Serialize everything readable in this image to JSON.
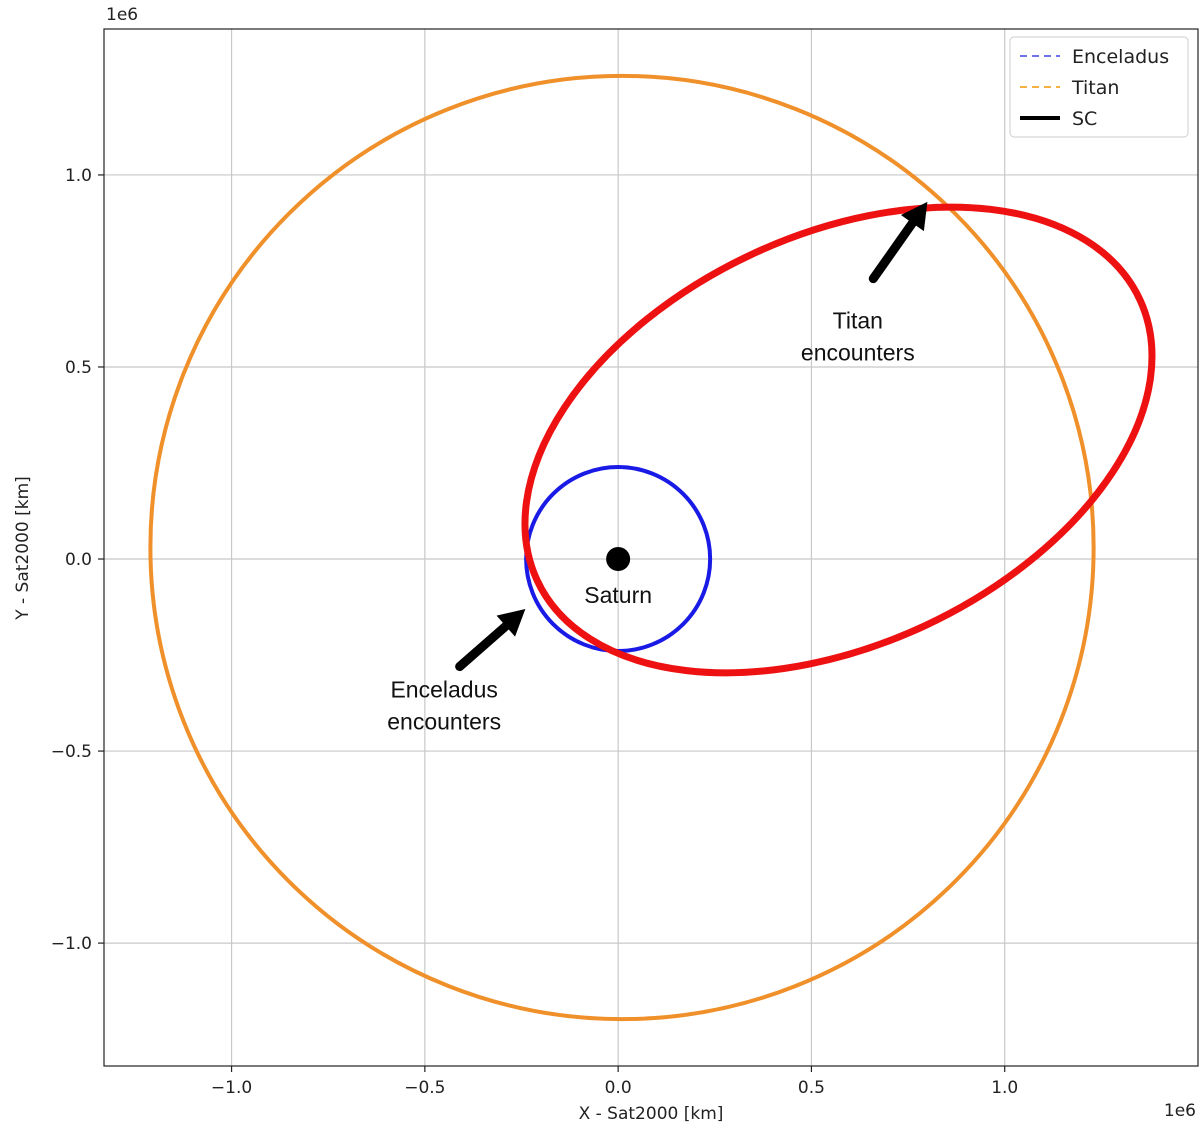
{
  "chart_data": {
    "type": "line",
    "xlabel": "X - Sat2000 [km]",
    "ylabel": "Y - Sat2000 [km]",
    "x_offset_label": "1e6",
    "y_offset_label": "1e6",
    "xlim": [
      -1.33,
      1.5
    ],
    "ylim": [
      -1.32,
      1.38
    ],
    "xticks": [
      {
        "value": -1.0,
        "label": "−1.0"
      },
      {
        "value": -0.5,
        "label": "−0.5"
      },
      {
        "value": 0.0,
        "label": "0.0"
      },
      {
        "value": 0.5,
        "label": "0.5"
      },
      {
        "value": 1.0,
        "label": "1.0"
      }
    ],
    "yticks": [
      {
        "value": 1.0,
        "label": "1.0"
      },
      {
        "value": 0.5,
        "label": "0.5"
      },
      {
        "value": 0.0,
        "label": "0.0"
      },
      {
        "value": -0.5,
        "label": "−0.5"
      },
      {
        "value": -1.0,
        "label": "−1.0"
      }
    ],
    "grid": true,
    "legend_position": "top-right",
    "legend": [
      {
        "label": "Enceladus",
        "color": "#7070e8",
        "style": "dashed"
      },
      {
        "label": "Titan",
        "color": "#f5b040",
        "style": "dashed"
      },
      {
        "label": "SC",
        "color": "#000000",
        "style": "solid"
      }
    ],
    "orbits": [
      {
        "name": "titan-orbit",
        "color": "#f0902a",
        "cx": 0.01,
        "cy": 0.03,
        "rx": 1.22,
        "ry": 1.22,
        "rotation_deg": 0
      },
      {
        "name": "enceladus-orbit",
        "color": "#1a1ae6",
        "cx": 0.0,
        "cy": 0.0,
        "rx": 0.238,
        "ry": 0.238,
        "rotation_deg": 0
      },
      {
        "name": "sc-orbit",
        "color": "#ee1111",
        "cx": 0.57,
        "cy": 0.31,
        "rx": 0.86,
        "ry": 0.53,
        "rotation_deg": 25
      }
    ],
    "saturn": {
      "label": "Saturn",
      "x": 0.0,
      "y": 0.0
    },
    "annotations": [
      {
        "name": "titan-encounters",
        "lines": [
          "Titan",
          "encounters"
        ],
        "text_x": 0.62,
        "text_y": 0.6,
        "arrow_from": [
          0.66,
          0.73
        ],
        "arrow_to": [
          0.8,
          0.93
        ]
      },
      {
        "name": "enceladus-encounters",
        "lines": [
          "Enceladus",
          "encounters"
        ],
        "text_x": -0.45,
        "text_y": -0.36,
        "arrow_from": [
          -0.41,
          -0.28
        ],
        "arrow_to": [
          -0.24,
          -0.13
        ]
      }
    ],
    "colors": {
      "grid": "#c8c8c8",
      "axes": "#222222"
    }
  }
}
